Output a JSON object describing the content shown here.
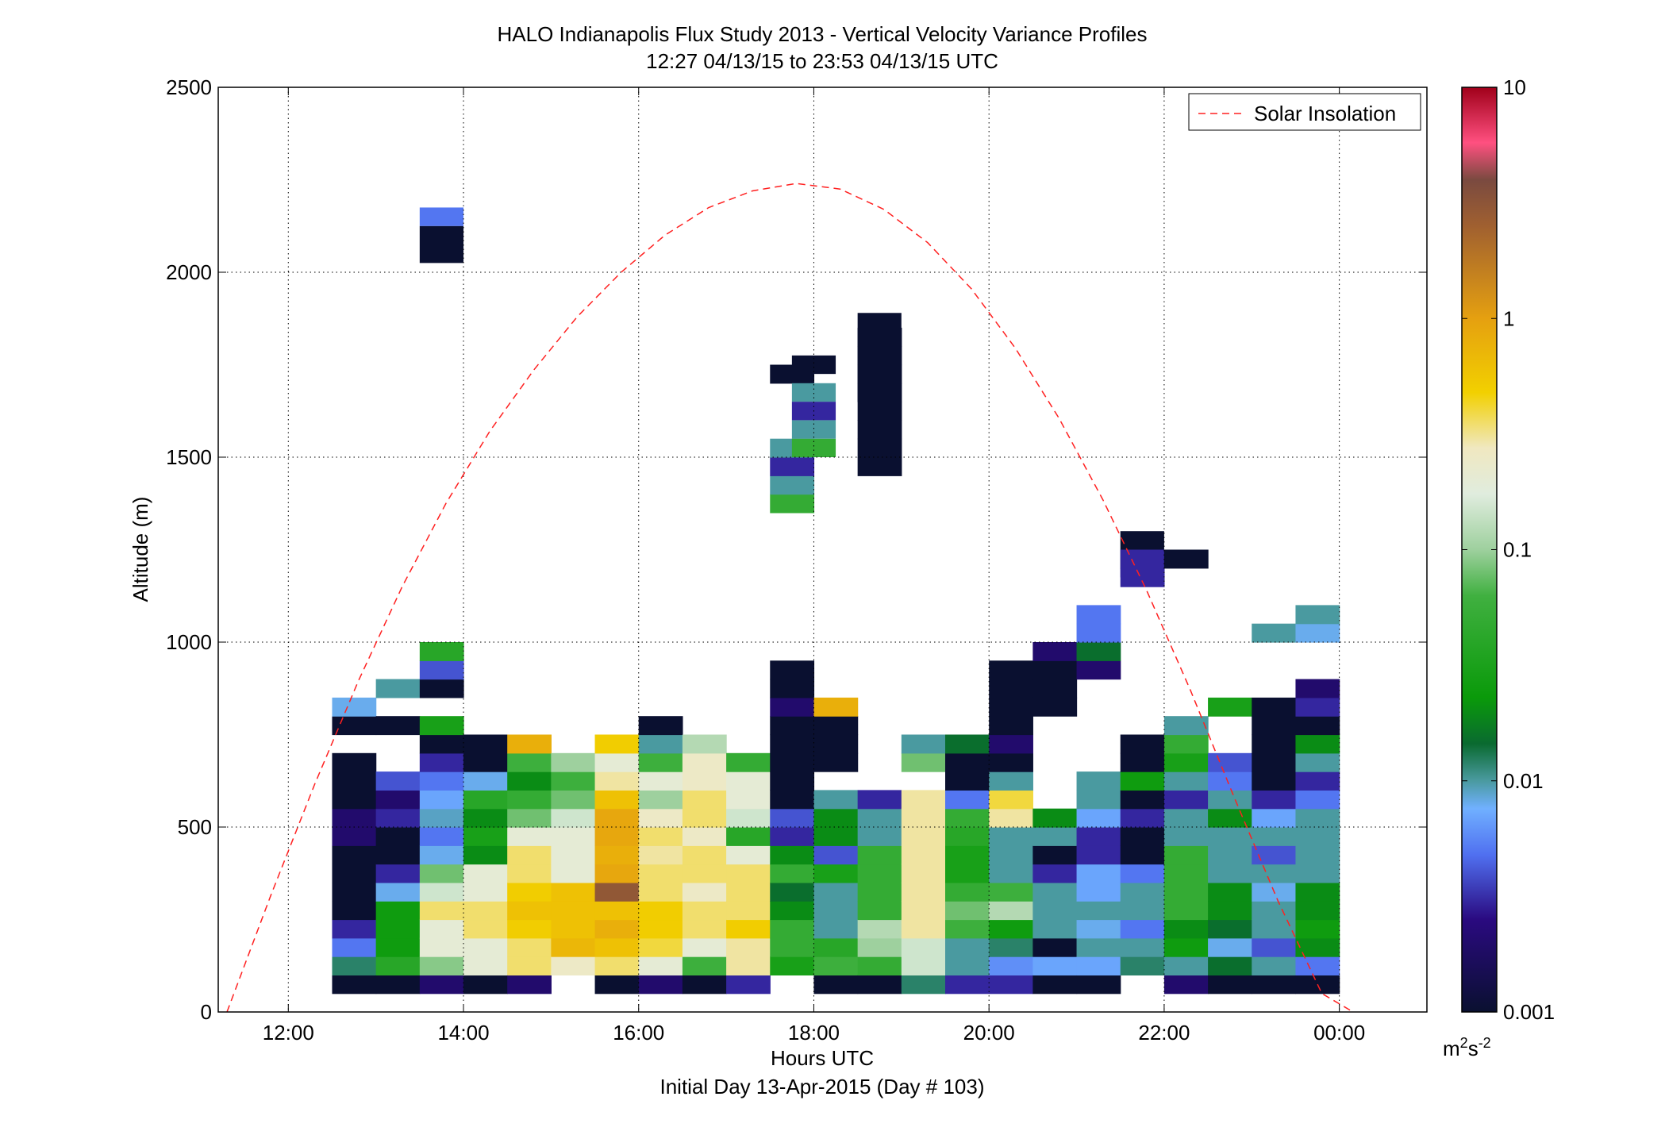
{
  "chart_data": {
    "type": "heatmap",
    "title": "HALO Indianapolis Flux Study 2013 - Vertical Velocity Variance Profiles",
    "subtitle": "12:27 04/13/15 to 23:53 04/13/15  UTC",
    "xlabel": "Hours UTC",
    "xlabel2": "Initial Day 13-Apr-2015 (Day # 103)",
    "ylabel": "Altitude (m)",
    "xlim": [
      11.2,
      25.0
    ],
    "ylim": [
      0,
      2500
    ],
    "grid": true,
    "x_ticks": [
      {
        "value": 12,
        "label": "12:00"
      },
      {
        "value": 14,
        "label": "14:00"
      },
      {
        "value": 16,
        "label": "16:00"
      },
      {
        "value": 18,
        "label": "18:00"
      },
      {
        "value": 20,
        "label": "20:00"
      },
      {
        "value": 22,
        "label": "22:00"
      },
      {
        "value": 24,
        "label": "00:00"
      }
    ],
    "y_ticks": [
      {
        "value": 0,
        "label": "0"
      },
      {
        "value": 500,
        "label": "500"
      },
      {
        "value": 1000,
        "label": "1000"
      },
      {
        "value": 1500,
        "label": "1500"
      },
      {
        "value": 2000,
        "label": "2000"
      },
      {
        "value": 2500,
        "label": "2500"
      }
    ],
    "colorbar": {
      "scale": "log",
      "range": [
        0.001,
        10
      ],
      "ticks": [
        {
          "value": 0.001,
          "label": "0.001"
        },
        {
          "value": 0.01,
          "label": "0.01"
        },
        {
          "value": 0.1,
          "label": "0.1"
        },
        {
          "value": 1,
          "label": "1"
        },
        {
          "value": 10,
          "label": "10"
        }
      ],
      "unit_base": "m",
      "unit_sup1": "2",
      "unit_mid": "s",
      "unit_sup2": "-2",
      "stops": [
        [
          0.0,
          "#0a1030"
        ],
        [
          0.1,
          "#2a0a80"
        ],
        [
          0.17,
          "#5070f0"
        ],
        [
          0.22,
          "#70b0ff"
        ],
        [
          0.25,
          "#4a9aa0"
        ],
        [
          0.29,
          "#0a6a30"
        ],
        [
          0.34,
          "#0a9a0a"
        ],
        [
          0.45,
          "#40b040"
        ],
        [
          0.5,
          "#9ed09e"
        ],
        [
          0.56,
          "#e0ecde"
        ],
        [
          0.61,
          "#f0e8c0"
        ],
        [
          0.67,
          "#f2d000"
        ],
        [
          0.75,
          "#e5a010"
        ],
        [
          0.85,
          "#a06030"
        ],
        [
          0.9,
          "#7a4a40"
        ],
        [
          0.94,
          "#ff5080"
        ],
        [
          1.0,
          "#a0001a"
        ]
      ]
    },
    "legend": {
      "label": "Solar Insolation",
      "position": "top-right"
    },
    "solar_insolation": {
      "x": [
        11.3,
        11.8,
        12.3,
        12.8,
        13.3,
        13.8,
        14.3,
        14.8,
        15.3,
        15.8,
        16.3,
        16.8,
        17.3,
        17.8,
        18.3,
        18.8,
        19.3,
        19.8,
        20.3,
        20.8,
        21.3,
        21.8,
        22.3,
        22.8,
        23.3,
        23.8,
        24.3
      ],
      "y": [
        0,
        315,
        615,
        895,
        1150,
        1375,
        1570,
        1735,
        1880,
        2000,
        2100,
        2175,
        2220,
        2240,
        2225,
        2170,
        2080,
        1955,
        1795,
        1605,
        1385,
        1140,
        870,
        580,
        300,
        50,
        -20
      ]
    },
    "bin_minutes": 30,
    "alt_bin_m": 50,
    "profiles": [
      {
        "t": 12.75,
        "z0": 50,
        "v": [
          0.001,
          0.012,
          0.005,
          0.003,
          0.001,
          0.001,
          0.001,
          0.001,
          0.002,
          0.002,
          0.001,
          0.001,
          0.001,
          null,
          0.001,
          0.008
        ]
      },
      {
        "t": 13.25,
        "z0": 50,
        "v": [
          0.001,
          0.04,
          0.025,
          0.025,
          0.025,
          0.008,
          0.003,
          0.001,
          0.001,
          0.003,
          0.002,
          0.004,
          null,
          null,
          0.001,
          null,
          0.01
        ]
      },
      {
        "t": 13.75,
        "z0": 50,
        "v": [
          0.002,
          0.09,
          0.2,
          0.2,
          0.35,
          0.15,
          0.08,
          0.008,
          0.005,
          0.009,
          0.007,
          0.005,
          0.003,
          0.001,
          0.03,
          null,
          0.001,
          0.004,
          0.04
        ]
      },
      {
        "t": 14.25,
        "z0": 50,
        "v": [
          0.001,
          0.2,
          0.2,
          0.35,
          0.35,
          0.2,
          0.2,
          0.02,
          0.03,
          0.02,
          0.04,
          0.008,
          0.001,
          0.001
        ]
      },
      {
        "t": 14.75,
        "z0": 50,
        "v": [
          0.002,
          0.35,
          0.35,
          0.5,
          0.6,
          0.5,
          0.35,
          0.35,
          0.2,
          0.08,
          0.05,
          0.02,
          0.06,
          0.8
        ]
      },
      {
        "t": 15.25,
        "z0": 50,
        "v": [
          null,
          0.25,
          0.7,
          0.6,
          0.6,
          0.6,
          0.2,
          0.2,
          0.2,
          0.15,
          0.08,
          0.06,
          0.1
        ]
      },
      {
        "t": 15.75,
        "z0": 50,
        "v": [
          0.001,
          0.35,
          0.6,
          0.8,
          0.6,
          3.0,
          0.9,
          0.8,
          0.9,
          0.9,
          0.6,
          0.3,
          0.2,
          0.5
        ]
      },
      {
        "t": 16.25,
        "z0": 50,
        "v": [
          0.002,
          0.2,
          0.4,
          0.5,
          0.5,
          0.35,
          0.35,
          0.3,
          0.35,
          0.25,
          0.1,
          0.2,
          0.06,
          0.01,
          0.001
        ]
      },
      {
        "t": 16.75,
        "z0": 50,
        "v": [
          0.001,
          0.06,
          0.2,
          0.35,
          0.35,
          0.25,
          0.35,
          0.35,
          0.25,
          0.35,
          0.35,
          0.25,
          0.25,
          0.12
        ]
      },
      {
        "t": 17.25,
        "z0": 50,
        "v": [
          0.003,
          0.3,
          0.3,
          0.5,
          0.35,
          0.35,
          0.35,
          0.2,
          0.04,
          0.15,
          0.2,
          0.2,
          0.05
        ]
      },
      {
        "t": 17.75,
        "z0": 50,
        "v": [
          null,
          0.03,
          0.05,
          0.05,
          0.02,
          0.015,
          0.05,
          0.02,
          0.003,
          0.004,
          0.001,
          0.001,
          0.001,
          0.001,
          0.001,
          0.002,
          0.001,
          0.001,
          null,
          null,
          null,
          null,
          null,
          null,
          null,
          null,
          0.05,
          0.01,
          0.003,
          0.01,
          null,
          null,
          null,
          0.001
        ]
      },
      {
        "t": 18.25,
        "z0": 50,
        "v": [
          0.001,
          0.06,
          0.04,
          0.01,
          0.01,
          0.01,
          0.03,
          0.004,
          0.02,
          0.02,
          0.01,
          null,
          0.001,
          0.001,
          0.001,
          0.8
        ]
      },
      {
        "t": 18.75,
        "z0": 50,
        "v": [
          0.001,
          0.05,
          0.1,
          0.12,
          0.05,
          0.05,
          0.05,
          0.05,
          0.01,
          0.01,
          0.003,
          null,
          null,
          null,
          null,
          null,
          null,
          null,
          null,
          null,
          null,
          null,
          null,
          null,
          null,
          null,
          null,
          null,
          0.001,
          0.001,
          0.001,
          0.001,
          0.001,
          0.001,
          0.001,
          0.001
        ]
      },
      {
        "t": 19.25,
        "z0": 50,
        "v": [
          0.012,
          0.15,
          0.15,
          0.3,
          0.3,
          0.3,
          0.3,
          0.3,
          0.3,
          0.3,
          0.3,
          null,
          0.08,
          0.01
        ]
      },
      {
        "t": 19.75,
        "z0": 50,
        "v": [
          0.003,
          0.01,
          0.01,
          0.06,
          0.08,
          0.05,
          0.03,
          0.03,
          0.04,
          0.05,
          0.005,
          0.001,
          0.001,
          0.015
        ]
      },
      {
        "t": 20.25,
        "z0": 50,
        "v": [
          0.003,
          0.006,
          0.012,
          0.025,
          0.12,
          0.06,
          0.01,
          0.01,
          0.01,
          0.3,
          0.4,
          0.01,
          0.001,
          0.002,
          0.001,
          0.001,
          0.001,
          0.001
        ]
      },
      {
        "t": 20.75,
        "z0": 50,
        "v": [
          0.001,
          0.007,
          0.001,
          0.01,
          0.01,
          0.01,
          0.003,
          0.001,
          0.01,
          0.02,
          null,
          null,
          null,
          null,
          null,
          0.001,
          0.001,
          0.001,
          0.002
        ]
      },
      {
        "t": 21.25,
        "z0": 50,
        "v": [
          0.001,
          0.007,
          0.01,
          0.008,
          0.01,
          0.007,
          0.007,
          0.003,
          0.003,
          0.007,
          0.01,
          0.01,
          null,
          null,
          null,
          null,
          null,
          0.002,
          0.015,
          0.005,
          0.005
        ]
      },
      {
        "t": 21.75,
        "z0": 50,
        "v": [
          null,
          0.012,
          0.01,
          0.005,
          0.01,
          0.01,
          0.005,
          0.001,
          0.001,
          0.003,
          0.001,
          0.025,
          0.001,
          0.001,
          null,
          null,
          null,
          null,
          null,
          null,
          null,
          null,
          0.003,
          0.001
        ]
      },
      {
        "t": 22.25,
        "z0": 50,
        "v": [
          0.002,
          0.01,
          0.025,
          0.02,
          0.05,
          0.05,
          0.05,
          0.05,
          0.01,
          0.01,
          0.003,
          0.01,
          0.03,
          0.05,
          0.01,
          null,
          null,
          null,
          null,
          null,
          null,
          null,
          null,
          0.001
        ]
      },
      {
        "t": 22.75,
        "z0": 50,
        "v": [
          0.001,
          0.015,
          0.008,
          0.015,
          0.02,
          0.02,
          0.01,
          0.01,
          0.01,
          0.02,
          0.01,
          0.005,
          0.004,
          null,
          null,
          0.03
        ]
      },
      {
        "t": 23.25,
        "z0": 50,
        "v": [
          0.001,
          0.01,
          0.004,
          0.01,
          0.01,
          0.008,
          0.01,
          0.004,
          0.01,
          0.007,
          0.003,
          0.001,
          0.001,
          0.001,
          0.001,
          0.001,
          null,
          null,
          null,
          0.01
        ]
      },
      {
        "t": 23.75,
        "z0": 50,
        "v": [
          0.001,
          0.005,
          0.02,
          0.025,
          0.02,
          0.02,
          0.01,
          0.01,
          0.01,
          0.01,
          0.005,
          0.003,
          0.01,
          0.02,
          0.001,
          0.003,
          0.002,
          null,
          null,
          0.008,
          0.01
        ]
      }
    ],
    "extra_cells": [
      {
        "t": 13.75,
        "z": 2025,
        "h": 100,
        "v": 0.001
      },
      {
        "t": 13.75,
        "z": 2125,
        "h": 50,
        "v": 0.005
      },
      {
        "t": 18.0,
        "z": 1500,
        "h": 50,
        "v": 0.05
      },
      {
        "t": 18.0,
        "z": 1550,
        "h": 50,
        "v": 0.01
      },
      {
        "t": 18.0,
        "z": 1600,
        "h": 50,
        "v": 0.003
      },
      {
        "t": 18.0,
        "z": 1650,
        "h": 50,
        "v": 0.01
      },
      {
        "t": 18.0,
        "z": 1725,
        "h": 50,
        "v": 0.001
      },
      {
        "t": 18.75,
        "z": 1650,
        "h": 240,
        "v": 0.001
      },
      {
        "t": 21.75,
        "z": 1250,
        "h": 50,
        "v": 0.001
      },
      {
        "t": 21.75,
        "z": 1175,
        "h": 75,
        "v": 0.003
      },
      {
        "t": 22.25,
        "z": 1200,
        "h": 50,
        "v": 0.001
      }
    ]
  }
}
